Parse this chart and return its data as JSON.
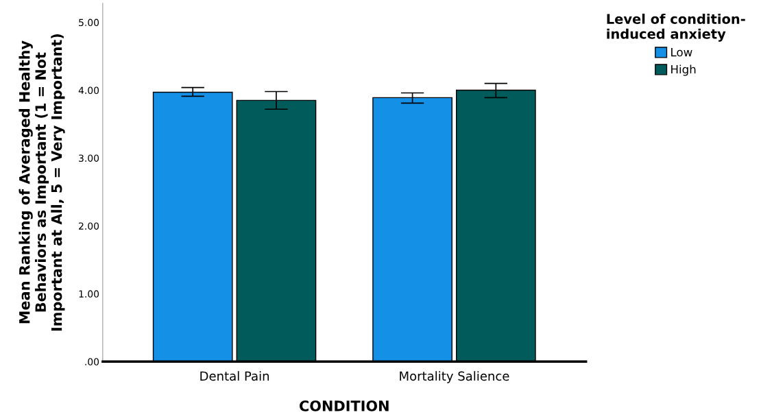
{
  "chart_data": {
    "type": "bar",
    "xlabel": "CONDITION",
    "ylabel": "Mean Ranking of Averaged Healthy\nBehaviors as Important (1 = Not\nImportant at All, 5 = Very Important)",
    "legend_title": "Level of condition-\ninduced anxiety",
    "categories": [
      "Dental Pain",
      "Mortality Salience"
    ],
    "series": [
      {
        "name": "Low",
        "color": "#1490e6",
        "values": [
          3.97,
          3.89
        ],
        "errors": [
          [
            3.91,
            4.04
          ],
          [
            3.81,
            3.96
          ]
        ]
      },
      {
        "name": "High",
        "color": "#025b5b",
        "values": [
          3.85,
          4.0
        ],
        "errors": [
          [
            3.72,
            3.98
          ],
          [
            3.89,
            4.1
          ]
        ]
      }
    ],
    "ylim": [
      0,
      5.28
    ],
    "yticks": [
      {
        "value": 0,
        "label": ".00"
      },
      {
        "value": 1,
        "label": "1.00"
      },
      {
        "value": 2,
        "label": "2.00"
      },
      {
        "value": 3,
        "label": "3.00"
      },
      {
        "value": 4,
        "label": "4.00"
      },
      {
        "value": 5,
        "label": "5.00"
      }
    ],
    "grid": false,
    "legend": "top right"
  }
}
